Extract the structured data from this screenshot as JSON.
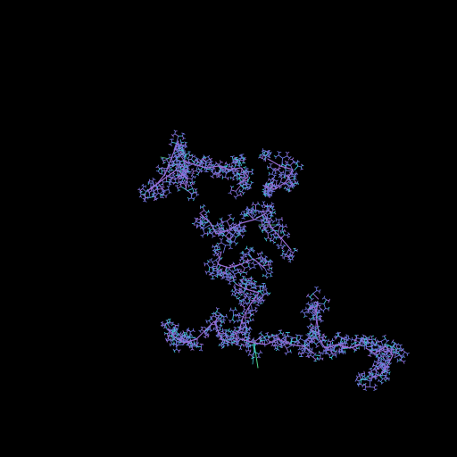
{
  "image": {
    "background_color": "#000000",
    "subject": "fractal-branching-structure",
    "palette": {
      "primary": "#6a73d8",
      "secondary": "#9a6fd6",
      "highlight": "#3fc7d6",
      "accent_green": "#4fd38a"
    }
  }
}
